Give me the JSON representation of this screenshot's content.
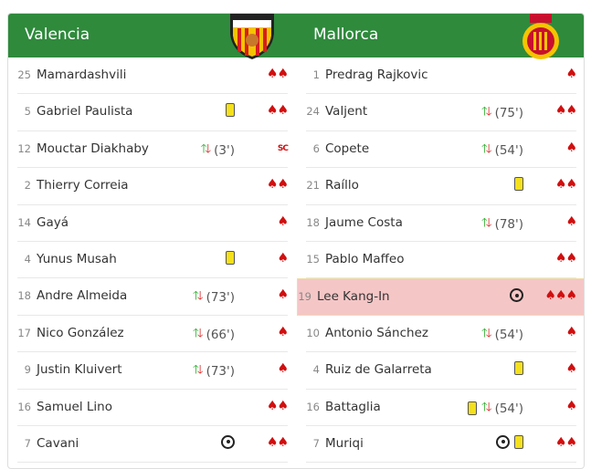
{
  "home": {
    "team": "Valencia",
    "logo_text": "VALENCIA C.F.",
    "players": [
      {
        "num": "25",
        "name": "Mamardashvili",
        "events": [],
        "rating": "♠♠"
      },
      {
        "num": "5",
        "name": "Gabriel Paulista",
        "events": [
          "yellow-card"
        ],
        "rating": "♠♠"
      },
      {
        "num": "12",
        "name": "Mouctar Diakhaby",
        "events": [
          "substitution"
        ],
        "minute": "(3')",
        "rating": "SC"
      },
      {
        "num": "2",
        "name": "Thierry Correia",
        "events": [],
        "rating": "♠♠"
      },
      {
        "num": "14",
        "name": "Gayá",
        "events": [],
        "rating": "♠"
      },
      {
        "num": "4",
        "name": "Yunus Musah",
        "events": [
          "yellow-card"
        ],
        "rating": "♠"
      },
      {
        "num": "18",
        "name": "Andre Almeida",
        "events": [
          "substitution"
        ],
        "minute": "(73')",
        "rating": "♠"
      },
      {
        "num": "17",
        "name": "Nico González",
        "events": [
          "substitution"
        ],
        "minute": "(66')",
        "rating": "♠"
      },
      {
        "num": "9",
        "name": "Justin Kluivert",
        "events": [
          "substitution"
        ],
        "minute": "(73')",
        "rating": "♠"
      },
      {
        "num": "16",
        "name": "Samuel Lino",
        "events": [],
        "rating": "♠♠"
      },
      {
        "num": "7",
        "name": "Cavani",
        "events": [
          "goal"
        ],
        "rating": "♠♠"
      }
    ]
  },
  "away": {
    "team": "Mallorca",
    "players": [
      {
        "num": "1",
        "name": "Predrag Rajkovic",
        "events": [],
        "rating": "♠"
      },
      {
        "num": "24",
        "name": "Valjent",
        "events": [
          "substitution"
        ],
        "minute": "(75')",
        "rating": "♠♠"
      },
      {
        "num": "6",
        "name": "Copete",
        "events": [
          "substitution"
        ],
        "minute": "(54')",
        "rating": "♠"
      },
      {
        "num": "21",
        "name": "Raíllo",
        "events": [
          "yellow-card"
        ],
        "rating": "♠♠"
      },
      {
        "num": "18",
        "name": "Jaume Costa",
        "events": [
          "substitution"
        ],
        "minute": "(78')",
        "rating": "♠"
      },
      {
        "num": "15",
        "name": "Pablo Maffeo",
        "events": [],
        "rating": "♠♠"
      },
      {
        "num": "19",
        "name": "Lee Kang-In",
        "events": [
          "goal"
        ],
        "rating": "♠♠♠",
        "highlight": true
      },
      {
        "num": "10",
        "name": "Antonio Sánchez",
        "events": [
          "substitution"
        ],
        "minute": "(54')",
        "rating": "♠"
      },
      {
        "num": "4",
        "name": "Ruiz de Galarreta",
        "events": [
          "yellow-card"
        ],
        "rating": "♠"
      },
      {
        "num": "16",
        "name": "Battaglia",
        "events": [
          "yellow-card",
          "substitution"
        ],
        "minute": "(54')",
        "rating": "♠"
      },
      {
        "num": "7",
        "name": "Muriqi",
        "events": [
          "goal",
          "yellow-card"
        ],
        "rating": "♠♠"
      }
    ]
  },
  "colors": {
    "header": "#2f8a3c",
    "rating": "#d10f0f",
    "highlight": "#f5c6c6"
  }
}
